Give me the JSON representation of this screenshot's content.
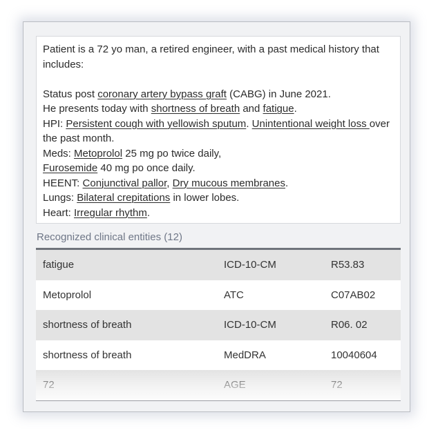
{
  "note": {
    "line1": {
      "t0": "Patient is a 72 yo man, a retired engineer, with a past medical history that includes:"
    },
    "line2": {
      "t0": "Status post ",
      "e1": "coronary artery bypass graft",
      "t1": " (CABG) in June 2021."
    },
    "line3": {
      "t0": "He presents today with ",
      "e1": "shortness of breath",
      "t1": " and ",
      "e2": "fatigue",
      "t2": "."
    },
    "line4": {
      "t0": "HPI: ",
      "e1": "Persistent cough with yellowish sputum",
      "t1": ". ",
      "e2": "Unintentional weight loss ",
      "t2": "over the past month."
    },
    "line5": {
      "t0": "Meds: ",
      "e1": "Metoprolol",
      "t1": " 25 mg po twice daily,"
    },
    "line6": {
      "e1": "Furosemide",
      "t1": " 40 mg po once daily."
    },
    "line7": {
      "t0": "HEENT: ",
      "e1": "Conjunctival pallor",
      "t1": ", ",
      "e2": "Dry mucous membranes",
      "t2": "."
    },
    "line8": {
      "t0": "Lungs: ",
      "e1": "Bilateral crepitations",
      "t1": " in lower lobes."
    },
    "line9": {
      "t0": "Heart: ",
      "e1": "Irregular rhythm",
      "t1": "."
    }
  },
  "entities": {
    "heading": "Recognized clinical entities (12)",
    "rows": [
      {
        "text": "fatigue",
        "system": "ICD-10-CM",
        "code": "R53.83"
      },
      {
        "text": "Metoprolol",
        "system": "ATC",
        "code": "C07AB02"
      },
      {
        "text": "shortness of breath",
        "system": "ICD-10-CM",
        "code": "R06. 02"
      },
      {
        "text": "shortness of breath",
        "system": "MedDRA",
        "code": "10040604"
      },
      {
        "text": "72",
        "system": "AGE",
        "code": "72"
      }
    ]
  },
  "colors": {
    "panel_bg": "#f1f2f4",
    "heading": "#6f7787",
    "row_alt": "#e3e3e3",
    "table_top_border": "#6f737b"
  }
}
